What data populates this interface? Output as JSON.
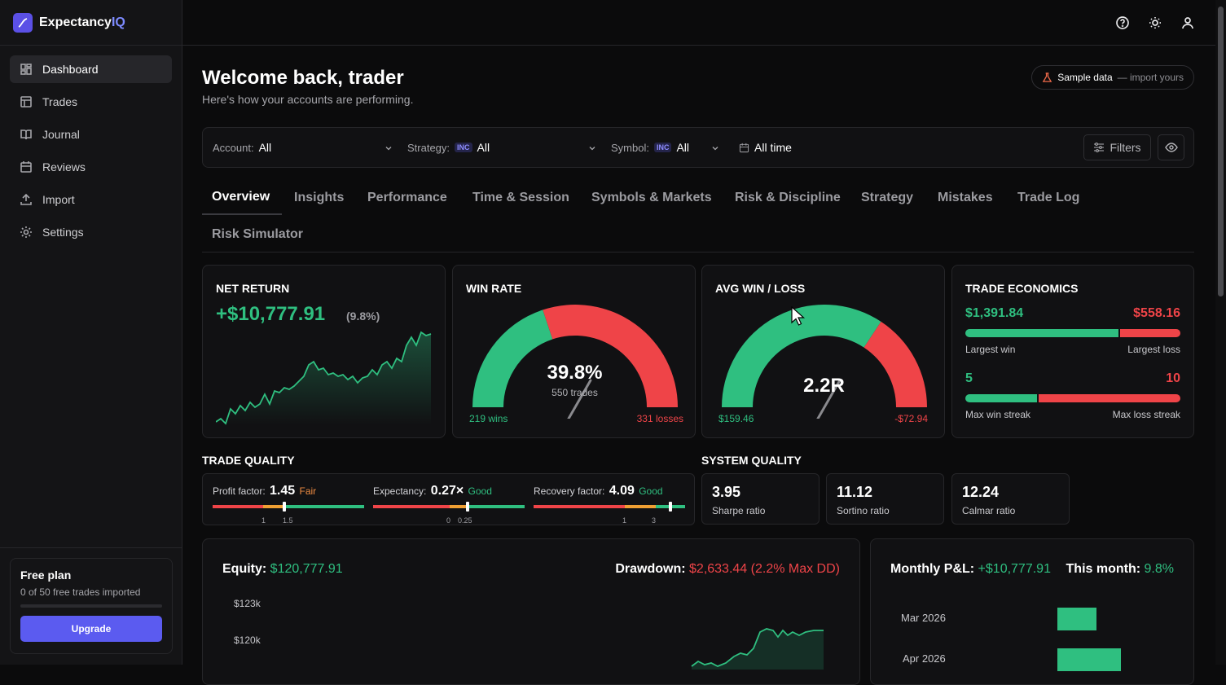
{
  "brand": {
    "name": "Expectancy",
    "accent": "IQ",
    "logo_icon": "chart-line-icon",
    "color": "#5b50e6"
  },
  "sidebar": {
    "items": [
      {
        "label": "Dashboard",
        "icon": "grid-icon",
        "active": true
      },
      {
        "label": "Trades",
        "icon": "table-icon"
      },
      {
        "label": "Journal",
        "icon": "book-icon"
      },
      {
        "label": "Reviews",
        "icon": "calendar-icon"
      },
      {
        "label": "Import",
        "icon": "upload-icon"
      },
      {
        "label": "Settings",
        "icon": "gear-icon"
      }
    ],
    "plan": {
      "title": "Free plan",
      "subtitle": "0 of 50 free trades imported",
      "progress": 0,
      "button": "Upgrade"
    }
  },
  "topbar": {
    "icons": [
      "help-icon",
      "sun-icon",
      "user-icon"
    ]
  },
  "header": {
    "title": "Welcome back, trader",
    "subtitle": "Here's how your accounts are performing.",
    "sample_badge": {
      "strong": "Sample data",
      "rest": "— import yours",
      "icon": "flask-icon"
    }
  },
  "filters": {
    "account": {
      "label": "Account:",
      "value": "All"
    },
    "strategy": {
      "label": "Strategy:",
      "tag": "INC",
      "value": "All"
    },
    "symbol": {
      "label": "Symbol:",
      "tag": "INC",
      "value": "All"
    },
    "date": {
      "value": "All time",
      "icon": "calendar-icon"
    },
    "filters_button": "Filters",
    "eye_icon": "eye-icon"
  },
  "tabs": [
    "Overview",
    "Insights",
    "Performance",
    "Time & Session",
    "Symbols & Markets",
    "Risk & Discipline",
    "Strategy",
    "Mistakes",
    "Trade Log",
    "Risk Simulator"
  ],
  "cards": {
    "net_return": {
      "title": "NET RETURN",
      "value": "+$10,777.91",
      "pct": "(9.8%)"
    },
    "win_rate": {
      "title": "WIN RATE",
      "value": "39.8%",
      "sub": "550 trades",
      "wins": "219 wins",
      "losses": "331 losses",
      "win_fraction": 0.398
    },
    "avg_win_loss": {
      "title": "AVG WIN / LOSS",
      "value": "2.2R",
      "win": "$159.46",
      "loss": "-$72.94",
      "win_fraction": 0.686
    },
    "trade_economics": {
      "title": "TRADE ECONOMICS",
      "largest_win": "$1,391.84",
      "largest_loss": "$558.16",
      "largest_win_label": "Largest win",
      "largest_loss_label": "Largest loss",
      "largest_win_fraction": 0.714,
      "win_streak": "5",
      "loss_streak": "10",
      "win_streak_label": "Max win streak",
      "loss_streak_label": "Max loss streak",
      "streak_fraction": 0.333
    }
  },
  "trade_quality": {
    "title": "TRADE QUALITY",
    "items": [
      {
        "label": "Profit factor:",
        "value": "1.45",
        "rating": "Fair",
        "ticks": [
          "1",
          "1.5"
        ]
      },
      {
        "label": "Expectancy:",
        "value": "0.27×",
        "rating": "Good",
        "ticks": [
          "0",
          "0.25"
        ]
      },
      {
        "label": "Recovery factor:",
        "value": "4.09",
        "rating": "Good",
        "ticks": [
          "1",
          "3"
        ]
      }
    ]
  },
  "system_quality": {
    "title": "SYSTEM QUALITY",
    "items": [
      {
        "value": "3.95",
        "label": "Sharpe ratio"
      },
      {
        "value": "11.12",
        "label": "Sortino ratio"
      },
      {
        "value": "12.24",
        "label": "Calmar ratio"
      }
    ]
  },
  "equity": {
    "label": "Equity:",
    "value": "$120,777.91",
    "dd_label": "Drawdown:",
    "dd_value": "$2,633.44 (2.2% Max DD)",
    "ticks": [
      "$123k",
      "$120k"
    ]
  },
  "monthly": {
    "label": "Monthly P&L:",
    "value": "+$10,777.91",
    "this_label": "This month:",
    "this_value": "9.8%",
    "rows": [
      {
        "month": "Mar 2026",
        "value": 0.42
      },
      {
        "month": "Apr 2026",
        "value": 0.68
      }
    ]
  },
  "colors": {
    "green": "#2fbf80",
    "red": "#ef4448",
    "accent": "#5b5bf0"
  }
}
